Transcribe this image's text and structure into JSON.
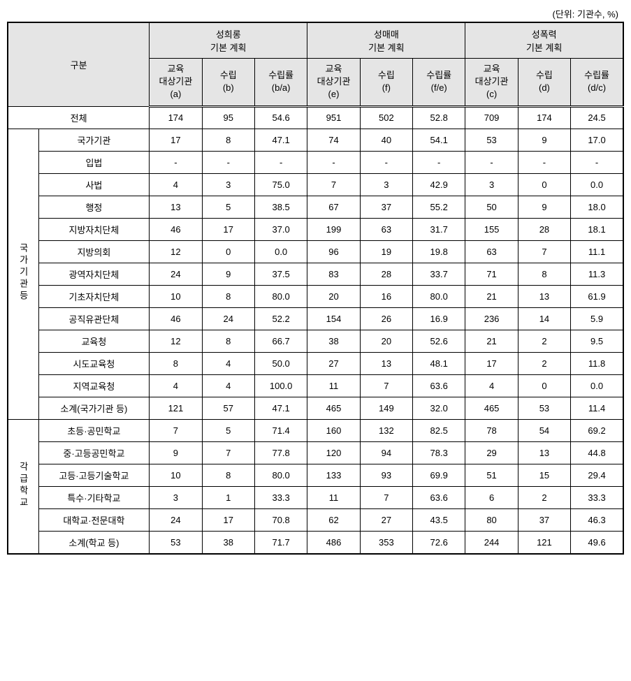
{
  "unit_label": "(단위: 기관수, %)",
  "headers": {
    "category": "구분",
    "group1": {
      "line1": "성희롱",
      "line2": "기본 계획"
    },
    "group2": {
      "line1": "성매매",
      "line2": "기본 계획"
    },
    "group3": {
      "line1": "성폭력",
      "line2": "기본 계획"
    },
    "sub1": {
      "line1": "교육",
      "line2": "대상기관",
      "line3": "(a)"
    },
    "sub2": {
      "line1": "수립",
      "line2": "(b)"
    },
    "sub3": {
      "line1": "수립률",
      "line2": "(b/a)"
    },
    "sub4": {
      "line1": "교육",
      "line2": "대상기관",
      "line3": "(e)"
    },
    "sub5": {
      "line1": "수립",
      "line2": "(f)"
    },
    "sub6": {
      "line1": "수립률",
      "line2": "(f/e)"
    },
    "sub7": {
      "line1": "교육",
      "line2": "대상기관",
      "line3": "(c)"
    },
    "sub8": {
      "line1": "수립",
      "line2": "(d)"
    },
    "sub9": {
      "line1": "수립률",
      "line2": "(d/c)"
    }
  },
  "total_row": {
    "label": "전체",
    "v": [
      "174",
      "95",
      "54.6",
      "951",
      "502",
      "52.8",
      "709",
      "174",
      "24.5"
    ]
  },
  "section1": {
    "label": "국가기관등",
    "rows": [
      {
        "label": "국가기관",
        "v": [
          "17",
          "8",
          "47.1",
          "74",
          "40",
          "54.1",
          "53",
          "9",
          "17.0"
        ]
      },
      {
        "label": "입법",
        "v": [
          "-",
          "-",
          "-",
          "-",
          "-",
          "-",
          "-",
          "-",
          "-"
        ]
      },
      {
        "label": "사법",
        "v": [
          "4",
          "3",
          "75.0",
          "7",
          "3",
          "42.9",
          "3",
          "0",
          "0.0"
        ]
      },
      {
        "label": "행정",
        "v": [
          "13",
          "5",
          "38.5",
          "67",
          "37",
          "55.2",
          "50",
          "9",
          "18.0"
        ]
      },
      {
        "label": "지방자치단체",
        "v": [
          "46",
          "17",
          "37.0",
          "199",
          "63",
          "31.7",
          "155",
          "28",
          "18.1"
        ]
      },
      {
        "label": "지방의회",
        "v": [
          "12",
          "0",
          "0.0",
          "96",
          "19",
          "19.8",
          "63",
          "7",
          "11.1"
        ]
      },
      {
        "label": "광역자치단체",
        "v": [
          "24",
          "9",
          "37.5",
          "83",
          "28",
          "33.7",
          "71",
          "8",
          "11.3"
        ]
      },
      {
        "label": "기초자치단체",
        "v": [
          "10",
          "8",
          "80.0",
          "20",
          "16",
          "80.0",
          "21",
          "13",
          "61.9"
        ]
      },
      {
        "label": "공직유관단체",
        "v": [
          "46",
          "24",
          "52.2",
          "154",
          "26",
          "16.9",
          "236",
          "14",
          "5.9"
        ]
      },
      {
        "label": "교육청",
        "v": [
          "12",
          "8",
          "66.7",
          "38",
          "20",
          "52.6",
          "21",
          "2",
          "9.5"
        ]
      },
      {
        "label": "시도교육청",
        "v": [
          "8",
          "4",
          "50.0",
          "27",
          "13",
          "48.1",
          "17",
          "2",
          "11.8"
        ]
      },
      {
        "label": "지역교육청",
        "v": [
          "4",
          "4",
          "100.0",
          "11",
          "7",
          "63.6",
          "4",
          "0",
          "0.0"
        ]
      },
      {
        "label": "소계(국가기관 등)",
        "v": [
          "121",
          "57",
          "47.1",
          "465",
          "149",
          "32.0",
          "465",
          "53",
          "11.4"
        ]
      }
    ]
  },
  "section2": {
    "label": "각급학교",
    "rows": [
      {
        "label": "초등·공민학교",
        "v": [
          "7",
          "5",
          "71.4",
          "160",
          "132",
          "82.5",
          "78",
          "54",
          "69.2"
        ]
      },
      {
        "label": "중·고등공민학교",
        "v": [
          "9",
          "7",
          "77.8",
          "120",
          "94",
          "78.3",
          "29",
          "13",
          "44.8"
        ]
      },
      {
        "label": "고등·고등기술학교",
        "v": [
          "10",
          "8",
          "80.0",
          "133",
          "93",
          "69.9",
          "51",
          "15",
          "29.4"
        ]
      },
      {
        "label": "특수·기타학교",
        "v": [
          "3",
          "1",
          "33.3",
          "11",
          "7",
          "63.6",
          "6",
          "2",
          "33.3"
        ]
      },
      {
        "label": "대학교·전문대학",
        "v": [
          "24",
          "17",
          "70.8",
          "62",
          "27",
          "43.5",
          "80",
          "37",
          "46.3"
        ]
      },
      {
        "label": "소계(학교 등)",
        "v": [
          "53",
          "38",
          "71.7",
          "486",
          "353",
          "72.6",
          "244",
          "121",
          "49.6"
        ]
      }
    ]
  },
  "styling": {
    "header_bg": "#e5e5e5",
    "border_color": "#000000",
    "font_size": 13,
    "background_color": "#ffffff"
  }
}
